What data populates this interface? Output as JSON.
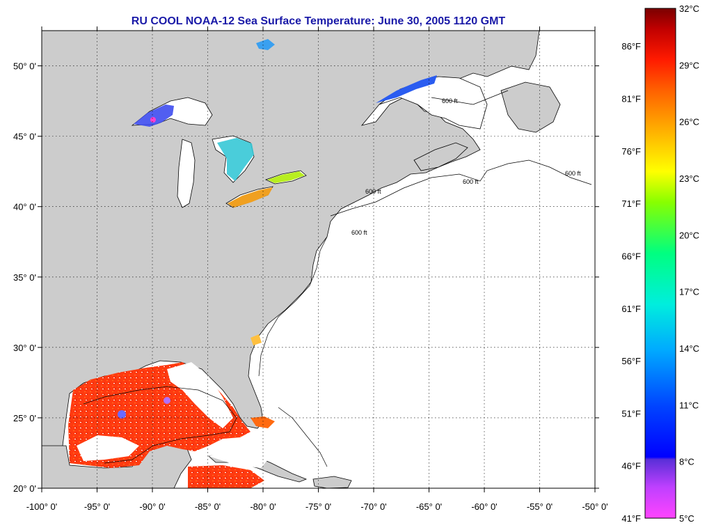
{
  "title": "RU COOL  NOAA-12  Sea Surface Temperature:  June 30, 2005 1120 GMT",
  "map": {
    "lon_ticks": [
      "-100° 0'",
      "-95° 0'",
      "-90° 0'",
      "-85° 0'",
      "-80° 0'",
      "-75° 0'",
      "-70° 0'",
      "-65° 0'",
      "-60° 0'",
      "-55° 0'",
      "-50° 0'"
    ],
    "lat_ticks": [
      "50° 0'",
      "45° 0'",
      "40° 0'",
      "35° 0'",
      "30° 0'",
      "25° 0'",
      "20° 0'"
    ],
    "lon_range": [
      -100,
      -50
    ],
    "lat_range": [
      20,
      52.5
    ],
    "land_color": "#cccccc",
    "contour_label": "600 ft"
  },
  "colorbar": {
    "celsius": [
      "32°C",
      "29°C",
      "26°C",
      "23°C",
      "20°C",
      "17°C",
      "14°C",
      "11°C",
      "8°C",
      "5°C"
    ],
    "fahrenheit": [
      "86°F",
      "81°F",
      "76°F",
      "71°F",
      "66°F",
      "61°F",
      "56°F",
      "51°F",
      "46°F",
      "41°F"
    ],
    "range_celsius": [
      5,
      32
    ],
    "colors": [
      "#ff44ff",
      "#7a3cff",
      "#0000ff",
      "#0066ff",
      "#00d8ff",
      "#00ff88",
      "#aaff00",
      "#ffff00",
      "#ffb000",
      "#ff6600",
      "#ff1a00",
      "#c00000",
      "#7a0000"
    ]
  }
}
